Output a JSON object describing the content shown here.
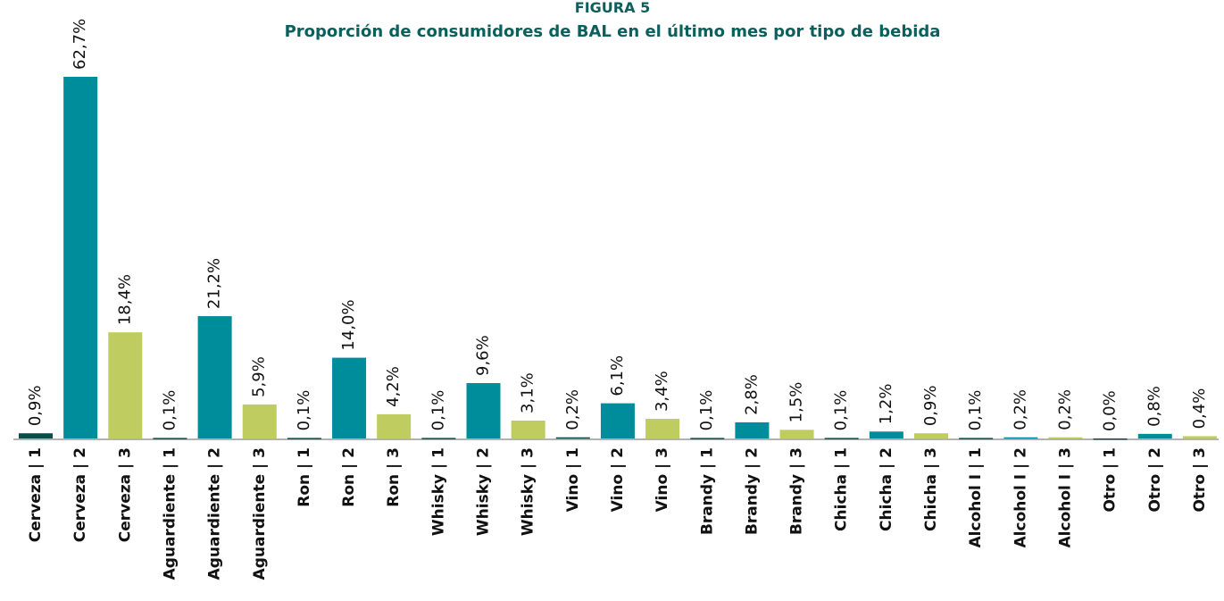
{
  "chart_data": {
    "type": "bar",
    "title": "FIGURA 5",
    "subtitle": "Proporción de consumidores de BAL en el último mes por tipo de bebida",
    "categories": [
      "Cerveza | 1",
      "Cerveza | 2",
      "Cerveza | 3",
      "Aguardiente | 1",
      "Aguardiente | 2",
      "Aguardiente | 3",
      "Ron | 1",
      "Ron | 2",
      "Ron | 3",
      "Whisky | 1",
      "Whisky | 2",
      "Whisky | 3",
      "Vino | 1",
      "Vino | 2",
      "Vino | 3",
      "Brandy | 1",
      "Brandy | 2",
      "Brandy | 3",
      "Chicha | 1",
      "Chicha | 2",
      "Chicha | 3",
      "Alcohol I | 1",
      "Alcohol I | 2",
      "Alcohol I | 3",
      "Otro | 1",
      "Otro | 2",
      "Otro | 3"
    ],
    "values": [
      0.9,
      62.7,
      18.4,
      0.1,
      21.2,
      5.9,
      0.1,
      14.0,
      4.2,
      0.1,
      9.6,
      3.1,
      0.2,
      6.1,
      3.4,
      0.1,
      2.8,
      1.5,
      0.1,
      1.2,
      0.9,
      0.1,
      0.2,
      0.2,
      0.0,
      0.8,
      0.4
    ],
    "value_labels": [
      "0,9%",
      "62,7%",
      "18,4%",
      "0,1%",
      "21,2%",
      "5,9%",
      "0,1%",
      "14,0%",
      "4,2%",
      "0,1%",
      "9,6%",
      "3,1%",
      "0,2%",
      "6,1%",
      "3,4%",
      "0,1%",
      "2,8%",
      "1,5%",
      "0,1%",
      "1,2%",
      "0,9%",
      "0,1%",
      "0,2%",
      "0,2%",
      "0,0%",
      "0,8%",
      "0,4%"
    ],
    "colors": [
      "#0b4d4a",
      "#008d9b",
      "#bfcc5f",
      "#0b4d4a",
      "#008d9b",
      "#bfcc5f",
      "#0b4d4a",
      "#008d9b",
      "#bfcc5f",
      "#0b4d4a",
      "#008d9b",
      "#bfcc5f",
      "#0b4d4a",
      "#008d9b",
      "#bfcc5f",
      "#0b4d4a",
      "#008d9b",
      "#bfcc5f",
      "#0b4d4a",
      "#008d9b",
      "#bfcc5f",
      "#0b4d4a",
      "#008d9b",
      "#bfcc5f",
      "#0b4d4a",
      "#008d9b",
      "#bfcc5f"
    ]
  }
}
